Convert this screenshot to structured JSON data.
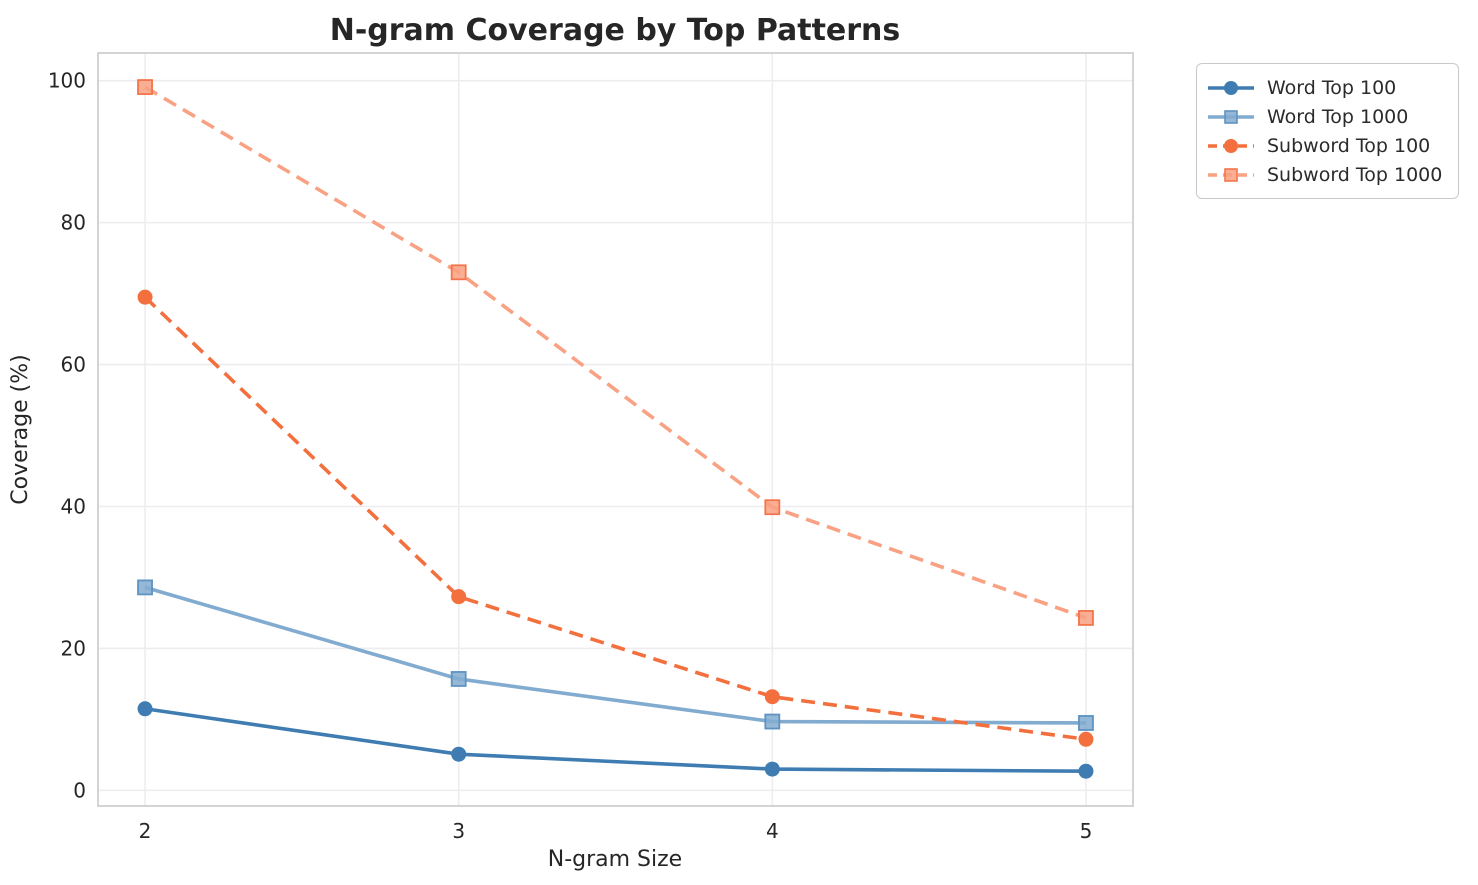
{
  "chart_data": {
    "type": "line",
    "title": "N-gram Coverage by Top Patterns",
    "xlabel": "N-gram Size",
    "ylabel": "Coverage (%)",
    "x": [
      2,
      3,
      4,
      5
    ],
    "xticks": [
      "2",
      "3",
      "4",
      "5"
    ],
    "yticks": [
      0,
      20,
      40,
      60,
      80,
      100
    ],
    "xlim": [
      1.85,
      5.15
    ],
    "ylim": [
      -2.2,
      103.9
    ],
    "grid": true,
    "legend_position": "upper-right-outside",
    "series": [
      {
        "name": "Word Top 100",
        "values": [
          11.5,
          5.1,
          3.0,
          2.7
        ],
        "color": "#3e7cb1",
        "edge_color": "#3e7cb1",
        "marker": "circle",
        "line_style": "solid"
      },
      {
        "name": "Word Top 1000",
        "values": [
          28.6,
          15.7,
          9.7,
          9.5
        ],
        "color": "#82abd0",
        "edge_color": "#5f93c2",
        "marker": "square",
        "line_style": "solid"
      },
      {
        "name": "Subword Top 100",
        "values": [
          69.5,
          27.3,
          13.2,
          7.2
        ],
        "color": "#f3703e",
        "edge_color": "#f3703e",
        "marker": "circle",
        "line_style": "dashed"
      },
      {
        "name": "Subword Top 1000",
        "values": [
          99.1,
          73.0,
          39.9,
          24.3
        ],
        "color": "#f9a183",
        "edge_color": "#f4744c",
        "marker": "square",
        "line_style": "dashed"
      }
    ],
    "colors": {
      "text": "#262626",
      "grid": "#ededf0",
      "spine": "#cfcfcf",
      "background": "#ffffff"
    }
  }
}
